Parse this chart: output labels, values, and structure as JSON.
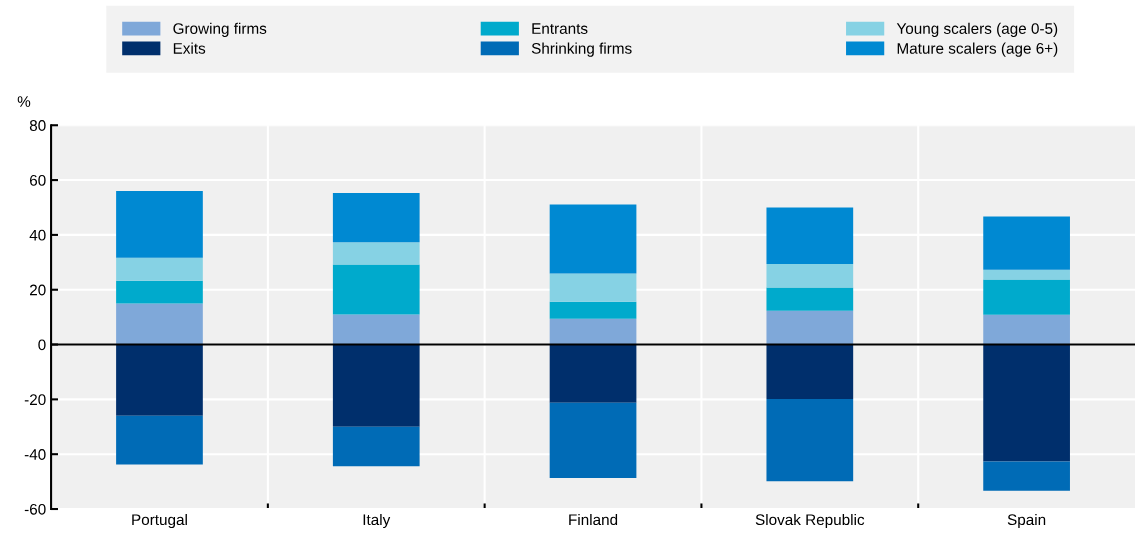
{
  "chart_data": {
    "type": "bar",
    "stacked": true,
    "ylabel": "%",
    "categories": [
      "Portugal",
      "Italy",
      "Finland",
      "Slovak Republic",
      "Spain"
    ],
    "series": [
      {
        "name": "Growing firms",
        "color": "#7fa8d9",
        "values": [
          15,
          11,
          9.4,
          12.3,
          10.9
        ]
      },
      {
        "name": "Entrants",
        "color": "#00aacc",
        "values": [
          8.3,
          18.2,
          6.2,
          8.5,
          12.8
        ]
      },
      {
        "name": "Young scalers (age 0-5)",
        "color": "#86d2e4",
        "values": [
          8.4,
          8.1,
          10.3,
          8.6,
          3.6
        ]
      },
      {
        "name": "Mature scalers (age 6+)",
        "color": "#0089d2",
        "values": [
          24.3,
          18,
          25.2,
          20.6,
          19.4
        ]
      },
      {
        "name": "Exits",
        "color": "#002f6c",
        "values": [
          -26,
          -30,
          -21.2,
          -19.9,
          -42.7
        ]
      },
      {
        "name": "Shrinking firms",
        "color": "#006bb6",
        "values": [
          -17.8,
          -14.4,
          -27.5,
          -30,
          -10.6
        ]
      }
    ],
    "ylim": [
      -60,
      80
    ],
    "yticks": [
      -60,
      -40,
      -20,
      0,
      20,
      40,
      60,
      80
    ],
    "grid": true,
    "legend": "top"
  }
}
